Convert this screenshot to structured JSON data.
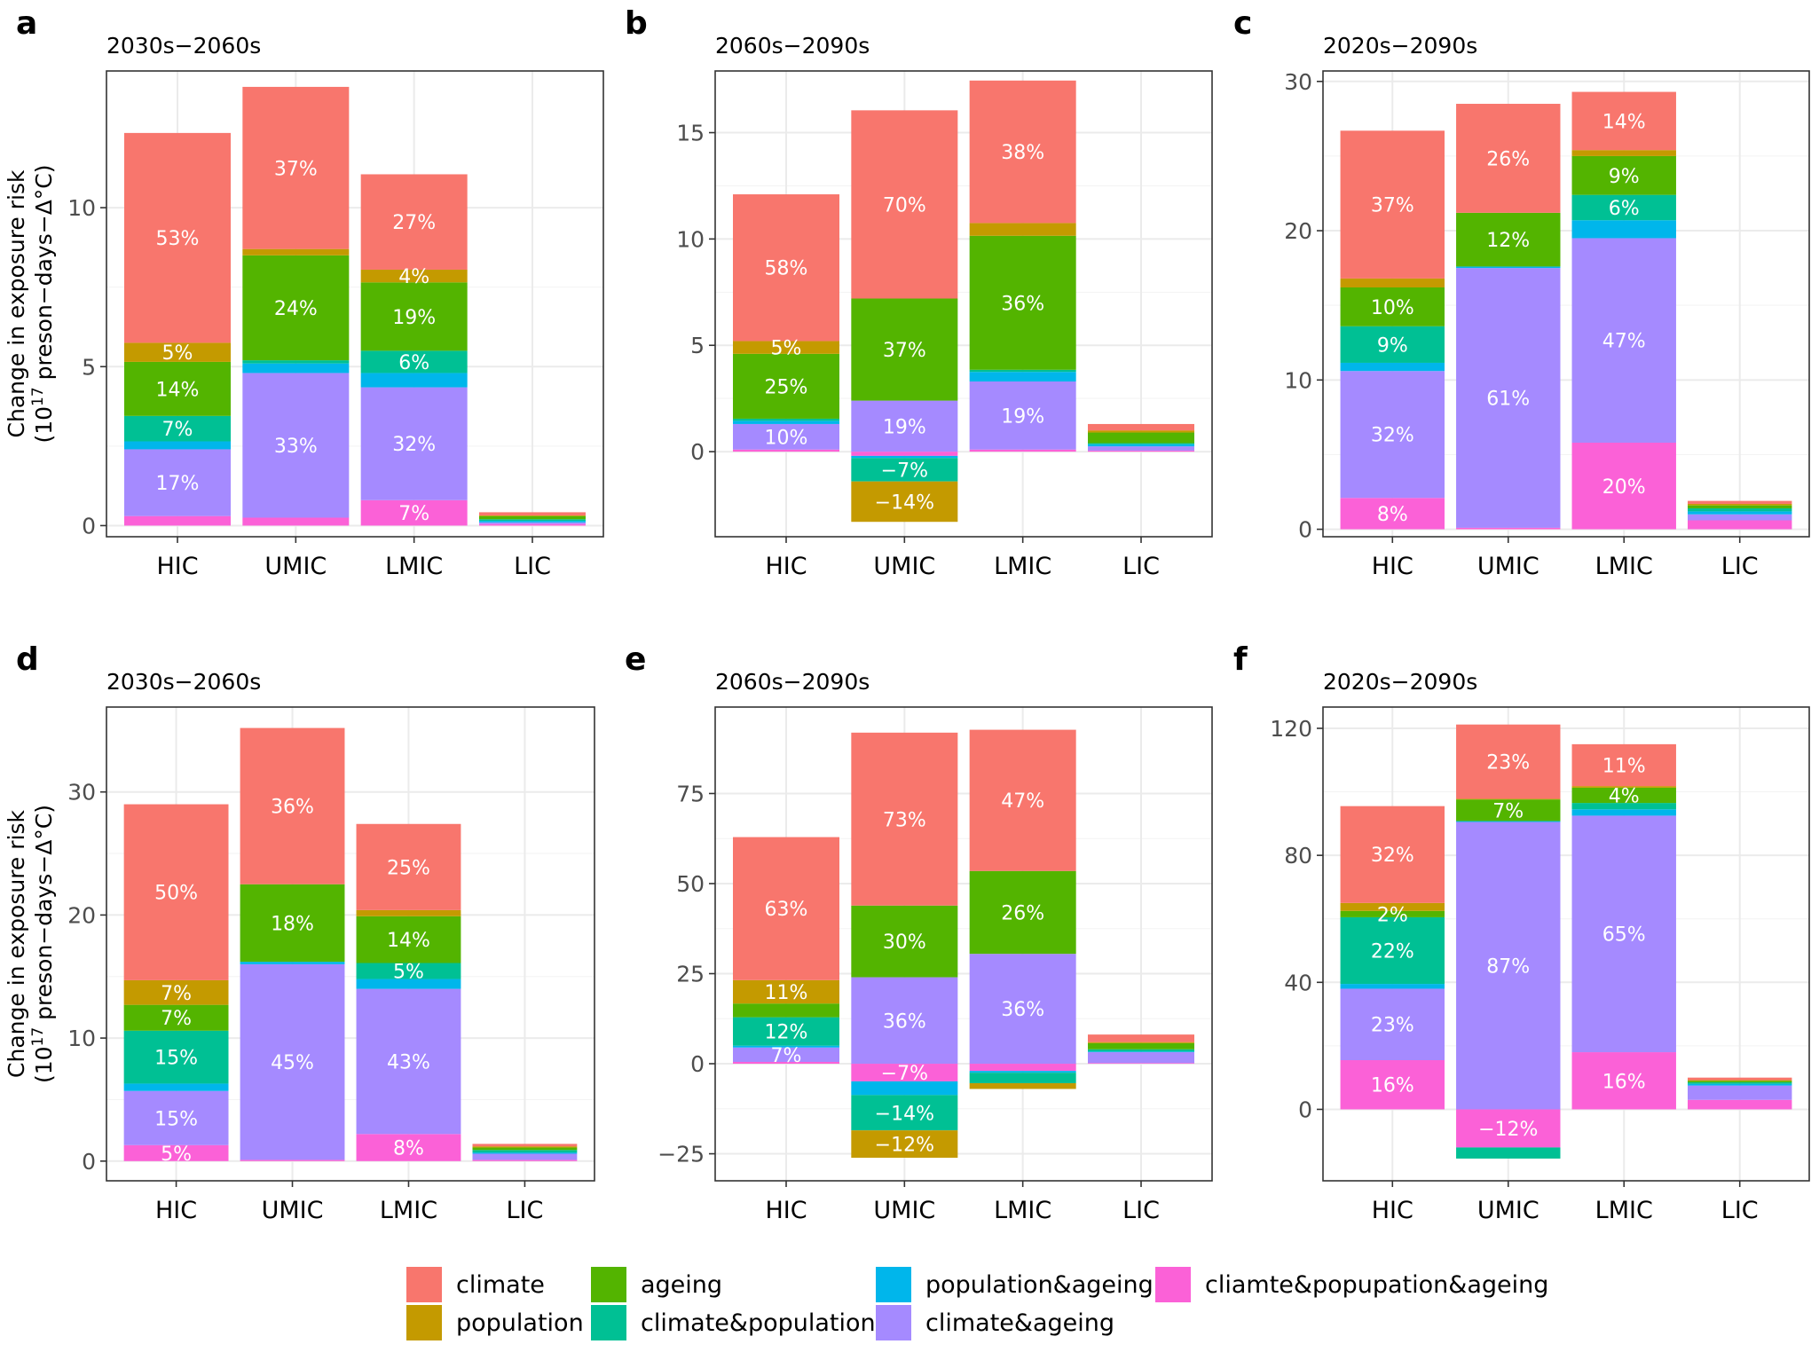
{
  "figure": {
    "colors": {
      "climate": "#F8766D",
      "population": "#C49A00",
      "ageing": "#53B400",
      "climate&population": "#00C094",
      "population&ageing": "#00B6EB",
      "climate&ageing": "#A58AFF",
      "cliamte&popupation&ageing": "#FB61D7"
    },
    "ylabel_line1": "Change in exposure risk",
    "ylabel_line2_pre": "(10",
    "ylabel_line2_sup": "17",
    "ylabel_line2_post": " preson−days−Δ°C)"
  },
  "legend": {
    "items": [
      {
        "key": "climate",
        "label": "climate"
      },
      {
        "key": "population",
        "label": "population"
      },
      {
        "key": "ageing",
        "label": "ageing"
      },
      {
        "key": "climate&population",
        "label": "climate&population"
      },
      {
        "key": "population&ageing",
        "label": "population&ageing"
      },
      {
        "key": "climate&ageing",
        "label": "climate&ageing"
      },
      {
        "key": "cliamte&popupation&ageing",
        "label": "cliamte&popupation&ageing"
      }
    ]
  },
  "chart_data": [
    {
      "panel": "a",
      "title": "2030s−2060s",
      "type": "bar",
      "stacked": true,
      "categories": [
        "HIC",
        "UMIC",
        "LMIC",
        "LIC"
      ],
      "ylim": [
        -0.35,
        14.3
      ],
      "yticks": [
        0,
        5,
        10
      ],
      "grid": true,
      "series": [
        {
          "name": "cliamte&popupation&ageing",
          "values": [
            0.3,
            0.25,
            0.8,
            0.05
          ]
        },
        {
          "name": "climate&ageing",
          "values": [
            2.1,
            4.55,
            3.55,
            0.05
          ]
        },
        {
          "name": "population&ageing",
          "values": [
            0.25,
            0.3,
            0.45,
            0.05
          ]
        },
        {
          "name": "climate&population",
          "values": [
            0.8,
            0.1,
            0.7,
            0.05
          ]
        },
        {
          "name": "ageing",
          "values": [
            1.7,
            3.3,
            2.15,
            0.1
          ]
        },
        {
          "name": "population",
          "values": [
            0.6,
            0.2,
            0.4,
            0.02
          ]
        },
        {
          "name": "climate",
          "values": [
            6.6,
            5.1,
            3.0,
            0.1
          ]
        }
      ],
      "labels": [
        [
          {
            "series": "cliamte&popupation&ageing",
            "text": ""
          },
          {
            "series": "climate&ageing",
            "text": "17%"
          },
          {
            "series": "climate&population",
            "text": "7%"
          },
          {
            "series": "ageing",
            "text": "14%"
          },
          {
            "series": "population",
            "text": "5%"
          },
          {
            "series": "climate",
            "text": "53%"
          }
        ],
        [
          {
            "series": "climate&ageing",
            "text": "33%"
          },
          {
            "series": "ageing",
            "text": "24%"
          },
          {
            "series": "climate",
            "text": "37%"
          }
        ],
        [
          {
            "series": "cliamte&popupation&ageing",
            "text": "7%"
          },
          {
            "series": "climate&ageing",
            "text": "32%"
          },
          {
            "series": "climate&population",
            "text": "6%"
          },
          {
            "series": "ageing",
            "text": "19%"
          },
          {
            "series": "population",
            "text": "4%"
          },
          {
            "series": "climate",
            "text": "27%"
          }
        ],
        []
      ]
    },
    {
      "panel": "b",
      "title": "2060s−2090s",
      "type": "bar",
      "stacked": true,
      "categories": [
        "HIC",
        "UMIC",
        "LMIC",
        "LIC"
      ],
      "ylim": [
        -4.0,
        17.9
      ],
      "yticks": [
        0,
        5,
        10,
        15
      ],
      "grid": true,
      "series": [
        {
          "name": "cliamte&popupation&ageing",
          "values": [
            0.1,
            -0.2,
            0.1,
            0.05
          ]
        },
        {
          "name": "climate&ageing",
          "values": [
            1.2,
            2.4,
            3.2,
            0.2
          ]
        },
        {
          "name": "population&ageing",
          "values": [
            0.15,
            -0.1,
            0.45,
            0.1
          ]
        },
        {
          "name": "climate&population",
          "values": [
            0.1,
            -1.1,
            0.1,
            0.05
          ]
        },
        {
          "name": "ageing",
          "values": [
            3.05,
            4.8,
            6.3,
            0.5
          ]
        },
        {
          "name": "population",
          "values": [
            0.6,
            -1.9,
            0.6,
            0.1
          ]
        },
        {
          "name": "climate",
          "values": [
            6.9,
            8.85,
            6.7,
            0.3
          ]
        }
      ],
      "labels": [
        [
          {
            "series": "climate&ageing",
            "text": "10%"
          },
          {
            "series": "ageing",
            "text": "25%"
          },
          {
            "series": "population",
            "text": "5%"
          },
          {
            "series": "climate",
            "text": "58%"
          }
        ],
        [
          {
            "series": "climate&ageing",
            "text": "19%"
          },
          {
            "series": "climate&population",
            "text": "−7%"
          },
          {
            "series": "ageing",
            "text": "37%"
          },
          {
            "series": "population",
            "text": "−14%"
          },
          {
            "series": "climate",
            "text": "70%"
          }
        ],
        [
          {
            "series": "climate&ageing",
            "text": "19%"
          },
          {
            "series": "ageing",
            "text": "36%"
          },
          {
            "series": "climate",
            "text": "38%"
          }
        ],
        []
      ]
    },
    {
      "panel": "c",
      "title": "2020s−2090s",
      "type": "bar",
      "stacked": true,
      "categories": [
        "HIC",
        "UMIC",
        "LMIC",
        "LIC"
      ],
      "ylim": [
        -0.5,
        30.7
      ],
      "yticks": [
        0,
        10,
        20,
        30
      ],
      "grid": true,
      "series": [
        {
          "name": "cliamte&popupation&ageing",
          "values": [
            2.1,
            0.1,
            5.8,
            0.6
          ]
        },
        {
          "name": "climate&ageing",
          "values": [
            8.5,
            17.4,
            13.7,
            0.4
          ]
        },
        {
          "name": "population&ageing",
          "values": [
            0.55,
            0.1,
            1.2,
            0.2
          ]
        },
        {
          "name": "climate&population",
          "values": [
            2.45,
            0.0,
            1.7,
            0.2
          ]
        },
        {
          "name": "ageing",
          "values": [
            2.6,
            3.6,
            2.6,
            0.2
          ]
        },
        {
          "name": "population",
          "values": [
            0.6,
            0.0,
            0.4,
            0.1
          ]
        },
        {
          "name": "climate",
          "values": [
            9.9,
            7.3,
            3.9,
            0.2
          ]
        }
      ],
      "labels": [
        [
          {
            "series": "cliamte&popupation&ageing",
            "text": "8%"
          },
          {
            "series": "climate&ageing",
            "text": "32%"
          },
          {
            "series": "climate&population",
            "text": "9%"
          },
          {
            "series": "ageing",
            "text": "10%"
          },
          {
            "series": "climate",
            "text": "37%"
          }
        ],
        [
          {
            "series": "climate&ageing",
            "text": "61%"
          },
          {
            "series": "ageing",
            "text": "12%"
          },
          {
            "series": "climate",
            "text": "26%"
          }
        ],
        [
          {
            "series": "cliamte&popupation&ageing",
            "text": "20%"
          },
          {
            "series": "climate&ageing",
            "text": "47%"
          },
          {
            "series": "climate&population",
            "text": "6%"
          },
          {
            "series": "ageing",
            "text": "9%"
          },
          {
            "series": "climate",
            "text": "14%"
          }
        ],
        []
      ]
    },
    {
      "panel": "d",
      "title": "2030s−2060s",
      "type": "bar",
      "stacked": true,
      "categories": [
        "HIC",
        "UMIC",
        "LMIC",
        "LIC"
      ],
      "ylim": [
        -1.6,
        36.9
      ],
      "yticks": [
        0,
        10,
        20,
        30
      ],
      "grid": true,
      "series": [
        {
          "name": "cliamte&popupation&ageing",
          "values": [
            1.3,
            0.1,
            2.2,
            0.1
          ]
        },
        {
          "name": "climate&ageing",
          "values": [
            4.4,
            15.9,
            11.8,
            0.5
          ]
        },
        {
          "name": "population&ageing",
          "values": [
            0.6,
            0.2,
            0.8,
            0.1
          ]
        },
        {
          "name": "climate&population",
          "values": [
            4.3,
            0.0,
            1.3,
            0.2
          ]
        },
        {
          "name": "ageing",
          "values": [
            2.1,
            6.3,
            3.8,
            0.2
          ]
        },
        {
          "name": "population",
          "values": [
            2.0,
            0.0,
            0.5,
            0.1
          ]
        },
        {
          "name": "climate",
          "values": [
            14.3,
            12.7,
            7.0,
            0.2
          ]
        }
      ],
      "labels": [
        [
          {
            "series": "cliamte&popupation&ageing",
            "text": "5%"
          },
          {
            "series": "climate&ageing",
            "text": "15%"
          },
          {
            "series": "climate&population",
            "text": "15%"
          },
          {
            "series": "ageing",
            "text": "7%"
          },
          {
            "series": "population",
            "text": "7%"
          },
          {
            "series": "climate",
            "text": "50%"
          }
        ],
        [
          {
            "series": "climate&ageing",
            "text": "45%"
          },
          {
            "series": "ageing",
            "text": "18%"
          },
          {
            "series": "climate",
            "text": "36%"
          }
        ],
        [
          {
            "series": "cliamte&popupation&ageing",
            "text": "8%"
          },
          {
            "series": "climate&ageing",
            "text": "43%"
          },
          {
            "series": "climate&population",
            "text": "5%"
          },
          {
            "series": "ageing",
            "text": "14%"
          },
          {
            "series": "climate",
            "text": "25%"
          }
        ],
        []
      ]
    },
    {
      "panel": "e",
      "title": "2060s−2090s",
      "type": "bar",
      "stacked": true,
      "categories": [
        "HIC",
        "UMIC",
        "LMIC",
        "LIC"
      ],
      "ylim": [
        -32.5,
        99.0
      ],
      "yticks": [
        -25,
        0,
        25,
        50,
        75
      ],
      "grid": true,
      "series": [
        {
          "name": "cliamte&popupation&ageing",
          "values": [
            0.5,
            -4.9,
            -2.0,
            0.2
          ]
        },
        {
          "name": "climate&ageing",
          "values": [
            4.0,
            24.0,
            30.5,
            3.0
          ]
        },
        {
          "name": "population&ageing",
          "values": [
            0.5,
            -3.8,
            -0.5,
            0.2
          ]
        },
        {
          "name": "climate&population",
          "values": [
            7.9,
            -9.8,
            -2.9,
            0.6
          ]
        },
        {
          "name": "ageing",
          "values": [
            3.8,
            19.9,
            23.0,
            1.7
          ]
        },
        {
          "name": "population",
          "values": [
            6.5,
            -7.6,
            -1.6,
            0.3
          ]
        },
        {
          "name": "climate",
          "values": [
            39.7,
            48.0,
            39.2,
            2.1
          ]
        }
      ],
      "labels": [
        [
          {
            "series": "climate&ageing",
            "text": "7%"
          },
          {
            "series": "climate&population",
            "text": "12%"
          },
          {
            "series": "population",
            "text": "11%"
          },
          {
            "series": "climate",
            "text": "63%"
          }
        ],
        [
          {
            "series": "cliamte&popupation&ageing",
            "text": "−7%"
          },
          {
            "series": "climate&ageing",
            "text": "36%"
          },
          {
            "series": "climate&population",
            "text": "−14%"
          },
          {
            "series": "ageing",
            "text": "30%"
          },
          {
            "series": "population",
            "text": "−12%"
          },
          {
            "series": "climate",
            "text": "73%"
          }
        ],
        [
          {
            "series": "climate&ageing",
            "text": "36%"
          },
          {
            "series": "ageing",
            "text": "26%"
          },
          {
            "series": "climate",
            "text": "47%"
          }
        ],
        []
      ]
    },
    {
      "panel": "f",
      "title": "2020s−2090s",
      "type": "bar",
      "stacked": true,
      "categories": [
        "HIC",
        "UMIC",
        "LMIC",
        "LIC"
      ],
      "ylim": [
        -22.5,
        126.7
      ],
      "yticks": [
        0,
        40,
        80,
        120
      ],
      "grid": true,
      "series": [
        {
          "name": "cliamte&popupation&ageing",
          "values": [
            15.5,
            -12.0,
            18.0,
            3.0
          ]
        },
        {
          "name": "climate&ageing",
          "values": [
            22.5,
            90.5,
            74.5,
            4.5
          ]
        },
        {
          "name": "population&ageing",
          "values": [
            1.5,
            0.3,
            2.0,
            0.5
          ]
        },
        {
          "name": "climate&population",
          "values": [
            21.0,
            -3.5,
            2.0,
            0.5
          ]
        },
        {
          "name": "ageing",
          "values": [
            2.0,
            6.8,
            4.8,
            0.5
          ]
        },
        {
          "name": "population",
          "values": [
            2.5,
            0.2,
            0.5,
            0.2
          ]
        },
        {
          "name": "climate",
          "values": [
            30.5,
            23.4,
            13.2,
            0.8
          ]
        }
      ],
      "labels": [
        [
          {
            "series": "cliamte&popupation&ageing",
            "text": "16%"
          },
          {
            "series": "climate&ageing",
            "text": "23%"
          },
          {
            "series": "climate&population",
            "text": "22%"
          },
          {
            "series": "ageing",
            "text": "2%"
          },
          {
            "series": "climate",
            "text": "32%"
          }
        ],
        [
          {
            "series": "cliamte&popupation&ageing",
            "text": "−12%"
          },
          {
            "series": "climate&ageing",
            "text": "87%"
          },
          {
            "series": "ageing",
            "text": "7%"
          },
          {
            "series": "climate",
            "text": "23%"
          }
        ],
        [
          {
            "series": "cliamte&popupation&ageing",
            "text": "16%"
          },
          {
            "series": "climate&ageing",
            "text": "65%"
          },
          {
            "series": "ageing",
            "text": "4%"
          },
          {
            "series": "climate",
            "text": "11%"
          }
        ],
        []
      ]
    }
  ]
}
